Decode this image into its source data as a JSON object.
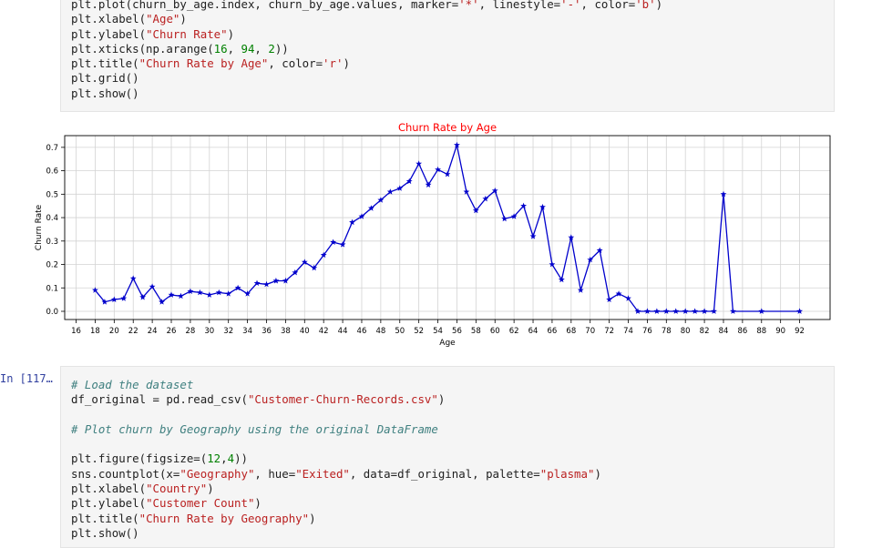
{
  "cell1": {
    "lines": [
      [
        [
          "fn",
          "plt.plot(churn_by_age.index, churn_by_age.values, marker="
        ],
        [
          "str",
          "'*'"
        ],
        [
          "fn",
          ", linestyle="
        ],
        [
          "str",
          "'-'"
        ],
        [
          "fn",
          ", color="
        ],
        [
          "str",
          "'b'"
        ],
        [
          "fn",
          ")"
        ]
      ],
      [
        [
          "fn",
          "plt.xlabel("
        ],
        [
          "str",
          "\"Age\""
        ],
        [
          "fn",
          ")"
        ]
      ],
      [
        [
          "fn",
          "plt.ylabel("
        ],
        [
          "str",
          "\"Churn Rate\""
        ],
        [
          "fn",
          ")"
        ]
      ],
      [
        [
          "fn",
          "plt.xticks(np.arange("
        ],
        [
          "num",
          "16"
        ],
        [
          "fn",
          ", "
        ],
        [
          "num",
          "94"
        ],
        [
          "fn",
          ", "
        ],
        [
          "num",
          "2"
        ],
        [
          "fn",
          "))"
        ]
      ],
      [
        [
          "fn",
          "plt.title("
        ],
        [
          "str",
          "\"Churn Rate by Age\""
        ],
        [
          "fn",
          ", color="
        ],
        [
          "str",
          "'r'"
        ],
        [
          "fn",
          ")"
        ]
      ],
      [
        [
          "fn",
          "plt.grid()"
        ]
      ],
      [
        [
          "fn",
          "plt.show()"
        ]
      ]
    ]
  },
  "cell2": {
    "prompt": "In [117…",
    "lines": [
      [
        [
          "cm",
          "# Load the dataset"
        ]
      ],
      [
        [
          "fn",
          "df_original = pd.read_csv("
        ],
        [
          "str",
          "\"Customer-Churn-Records.csv\""
        ],
        [
          "fn",
          ")"
        ]
      ],
      [
        [
          "fn",
          ""
        ]
      ],
      [
        [
          "cm",
          "# Plot churn by Geography using the original DataFrame"
        ]
      ],
      [
        [
          "fn",
          ""
        ]
      ],
      [
        [
          "fn",
          "plt.figure(figsize=("
        ],
        [
          "num",
          "12"
        ],
        [
          "fn",
          ","
        ],
        [
          "num",
          "4"
        ],
        [
          "fn",
          "))"
        ]
      ],
      [
        [
          "fn",
          "sns.countplot(x="
        ],
        [
          "str",
          "\"Geography\""
        ],
        [
          "fn",
          ", hue="
        ],
        [
          "str",
          "\"Exited\""
        ],
        [
          "fn",
          ", data=df_original, palette="
        ],
        [
          "str",
          "\"plasma\""
        ],
        [
          "fn",
          ")"
        ]
      ],
      [
        [
          "fn",
          "plt.xlabel("
        ],
        [
          "str",
          "\"Country\""
        ],
        [
          "fn",
          ")"
        ]
      ],
      [
        [
          "fn",
          "plt.ylabel("
        ],
        [
          "str",
          "\"Customer Count\""
        ],
        [
          "fn",
          ")"
        ]
      ],
      [
        [
          "fn",
          "plt.title("
        ],
        [
          "str",
          "\"Churn Rate by Geography\""
        ],
        [
          "fn",
          ")"
        ]
      ],
      [
        [
          "fn",
          "plt.show()"
        ]
      ]
    ]
  },
  "chart_data": {
    "type": "line",
    "title": "Churn Rate by Age",
    "xlabel": "Age",
    "ylabel": "Churn Rate",
    "xlim": [
      14.8,
      95.2
    ],
    "ylim": [
      -0.035,
      0.75
    ],
    "xticks": [
      16,
      18,
      20,
      22,
      24,
      26,
      28,
      30,
      32,
      34,
      36,
      38,
      40,
      42,
      44,
      46,
      48,
      50,
      52,
      54,
      56,
      58,
      60,
      62,
      64,
      66,
      68,
      70,
      72,
      74,
      76,
      78,
      80,
      82,
      84,
      86,
      88,
      90,
      92
    ],
    "yticks": [
      0.0,
      0.1,
      0.2,
      0.3,
      0.4,
      0.5,
      0.6,
      0.7
    ],
    "grid": true,
    "marker": "*",
    "colors": {
      "line": "#0000cc",
      "title": "#ff0000"
    },
    "series": [
      {
        "x": [
          18,
          19,
          20,
          21,
          22,
          23,
          24,
          25,
          26,
          27,
          28,
          29,
          30,
          31,
          32,
          33,
          34,
          35,
          36,
          37,
          38,
          39,
          40,
          41,
          42,
          43,
          44,
          45,
          46,
          47,
          48,
          49,
          50,
          51,
          52,
          53,
          54,
          55,
          56,
          57,
          58,
          59,
          60,
          61,
          62,
          63,
          64,
          65,
          66,
          67,
          68,
          69,
          70,
          71,
          72,
          73,
          74,
          75,
          76,
          77,
          78,
          79,
          80,
          81,
          82,
          83,
          84,
          85,
          88,
          92
        ],
        "y": [
          0.09,
          0.04,
          0.05,
          0.055,
          0.14,
          0.06,
          0.105,
          0.04,
          0.07,
          0.065,
          0.085,
          0.08,
          0.07,
          0.08,
          0.075,
          0.1,
          0.075,
          0.12,
          0.115,
          0.13,
          0.13,
          0.165,
          0.21,
          0.185,
          0.24,
          0.295,
          0.285,
          0.38,
          0.405,
          0.44,
          0.475,
          0.51,
          0.525,
          0.555,
          0.63,
          0.54,
          0.605,
          0.585,
          0.71,
          0.51,
          0.43,
          0.48,
          0.515,
          0.395,
          0.405,
          0.45,
          0.32,
          0.445,
          0.2,
          0.135,
          0.315,
          0.09,
          0.22,
          0.26,
          0.05,
          0.075,
          0.055,
          0.0,
          0.0,
          0.0,
          0.0,
          0.0,
          0.0,
          0.0,
          0.0,
          0.0,
          0.5,
          0.0,
          0.0,
          0.0
        ]
      }
    ]
  }
}
